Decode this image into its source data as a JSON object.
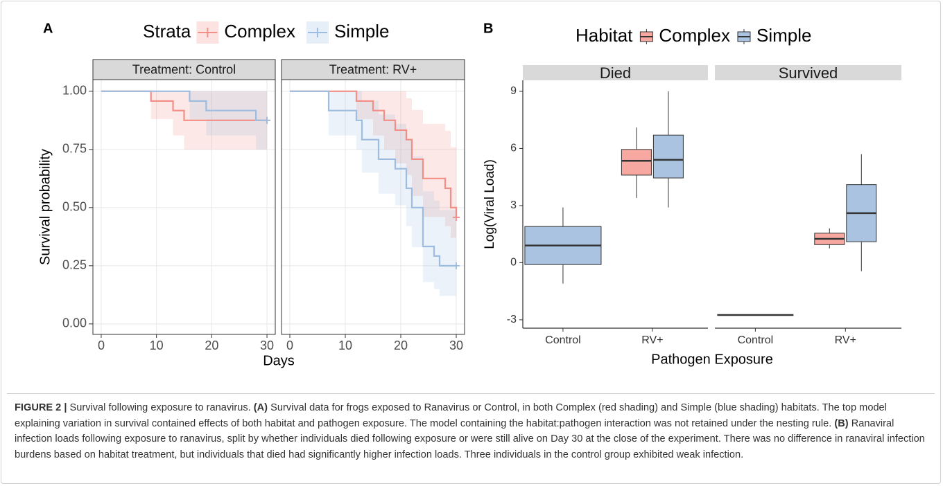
{
  "chart_data": [
    {
      "type": "survival-step",
      "panel": "A",
      "legend": {
        "title": "Strata"
      },
      "facets": [
        "Treatment: Control",
        "Treatment: RV+"
      ],
      "xlabel": "Days",
      "ylabel": "Survival probability",
      "xlim": [
        -1.5,
        31.5
      ],
      "xticks": [
        0,
        10,
        20,
        30
      ],
      "ylim": [
        -0.045,
        1.05
      ],
      "yticks": [
        {
          "value": 0,
          "label": "0.00"
        },
        {
          "value": 0.25,
          "label": "0.25"
        },
        {
          "value": 0.5,
          "label": "0.50"
        },
        {
          "value": 0.75,
          "label": "0.75"
        },
        {
          "value": 1,
          "label": "1.00"
        }
      ],
      "grid": true,
      "series": [
        {
          "name": "Complex",
          "color": "#f28e86",
          "facets": [
            {
              "x": [
                0,
                9,
                13,
                15,
                30
              ],
              "values": [
                1,
                0.958,
                0.917,
                0.875,
                0.875
              ],
              "lower": [
                1,
                0.88,
                0.81,
                0.75,
                0.75
              ],
              "upper": [
                1,
                1,
                1,
                1,
                1
              ]
            },
            {
              "x": [
                0,
                12,
                15,
                17,
                19,
                21,
                22,
                24,
                28,
                29,
                30
              ],
              "values": [
                1,
                0.958,
                0.917,
                0.875,
                0.833,
                0.792,
                0.708,
                0.625,
                0.583,
                0.5,
                0.458
              ],
              "lower": [
                1,
                0.88,
                0.81,
                0.75,
                0.69,
                0.64,
                0.55,
                0.46,
                0.42,
                0.37,
                0.33
              ],
              "upper": [
                1,
                1,
                1,
                1,
                1,
                0.97,
                0.92,
                0.86,
                0.83,
                0.76,
                0.72
              ]
            }
          ]
        },
        {
          "name": "Simple",
          "color": "#9dbde0",
          "facets": [
            {
              "x": [
                0,
                16,
                19,
                28,
                30
              ],
              "values": [
                1,
                0.958,
                0.917,
                0.875,
                0.875
              ],
              "lower": [
                1,
                0.88,
                0.81,
                0.75,
                0.75
              ],
              "upper": [
                1,
                1,
                1,
                1,
                1
              ]
            },
            {
              "x": [
                0,
                7,
                12,
                13,
                16,
                19,
                21,
                22,
                24,
                26,
                27,
                30
              ],
              "values": [
                1,
                0.917,
                0.875,
                0.792,
                0.708,
                0.667,
                0.583,
                0.5,
                0.333,
                0.292,
                0.25,
                0.25
              ],
              "lower": [
                1,
                0.81,
                0.75,
                0.65,
                0.56,
                0.51,
                0.42,
                0.33,
                0.18,
                0.15,
                0.12,
                0.12
              ],
              "upper": [
                1,
                1,
                1,
                0.96,
                0.9,
                0.86,
                0.79,
                0.72,
                0.57,
                0.53,
                0.49,
                0.49
              ]
            }
          ]
        }
      ]
    },
    {
      "type": "boxplot",
      "panel": "B",
      "legend": {
        "title": "Habitat"
      },
      "facets": [
        "Died",
        "Survived"
      ],
      "categories": [
        "Control",
        "RV+"
      ],
      "xlabel": "Pathogen Exposure",
      "ylabel": "Log(Viral Load)",
      "ylim": [
        -3.44,
        9.58
      ],
      "yticks": [
        -3,
        0,
        3,
        6,
        9
      ],
      "series": [
        {
          "name": "Complex",
          "color": "#f6a8a1",
          "facets": [
            [
              null,
              {
                "min": 3.4,
                "q1": 4.6,
                "median": 5.35,
                "q3": 5.95,
                "max": 7.1
              }
            ],
            [
              null,
              {
                "min": 0.75,
                "q1": 0.95,
                "median": 1.25,
                "q3": 1.55,
                "max": 1.8
              }
            ]
          ]
        },
        {
          "name": "Simple",
          "color": "#aac3e0",
          "facets": [
            [
              {
                "min": -1.1,
                "q1": -0.1,
                "median": 0.9,
                "q3": 1.9,
                "max": 2.9
              },
              {
                "min": 2.9,
                "q1": 4.45,
                "median": 5.4,
                "q3": 6.7,
                "max": 9.0
              }
            ],
            [
              {
                "min": -2.75,
                "q1": -2.75,
                "median": -2.75,
                "q3": -2.75,
                "max": -2.75
              },
              {
                "min": -0.45,
                "q1": 1.1,
                "median": 2.6,
                "q3": 4.1,
                "max": 5.7
              }
            ]
          ]
        }
      ]
    }
  ],
  "caption": {
    "label": "FIGURE 2 |",
    "title": "Survival following exposure to ranavirus.",
    "panels": [
      {
        "label": "(A)",
        "text": "Survival data for frogs exposed to Ranavirus or Control, in both Complex (red shading) and Simple (blue shading) habitats. The top model explaining variation in survival contained effects of both habitat and pathogen exposure. The model containing the habitat:pathogen interaction was not retained under the nesting rule."
      },
      {
        "label": "(B)",
        "text": "Ranaviral infection loads following exposure to ranavirus, split by whether individuals died following exposure or were still alive on Day 30 at the close of the experiment. There was no difference in ranaviral infection burdens based on habitat treatment, but individuals that died had significantly higher infection loads. Three individuals in the control group exhibited weak infection."
      }
    ]
  }
}
